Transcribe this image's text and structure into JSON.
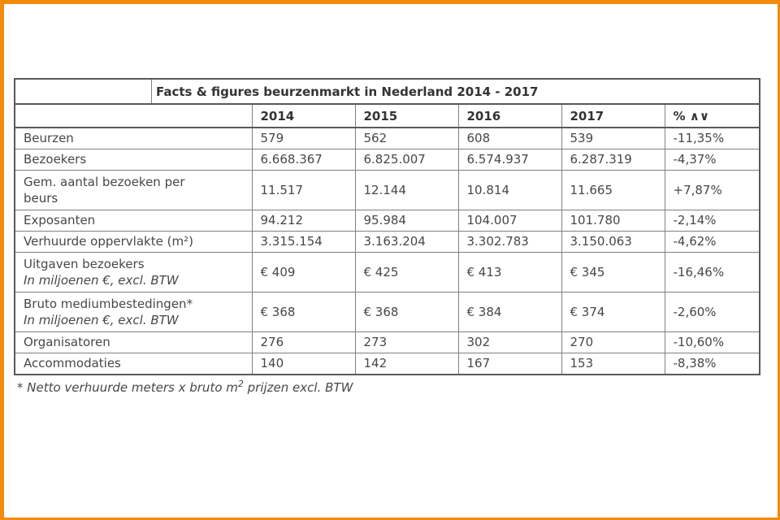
{
  "chart_data": {
    "type": "table",
    "title": "Facts & figures beurzenmarkt in Nederland 2014 - 2017",
    "columns": [
      "",
      "2014",
      "2015",
      "2016",
      "2017",
      "% ∧∨"
    ],
    "rows": [
      {
        "label": "Beurzen",
        "values": [
          "579",
          "562",
          "608",
          "539",
          "-11,35%"
        ]
      },
      {
        "label": "Bezoekers",
        "values": [
          "6.668.367",
          "6.825.007",
          "6.574.937",
          "6.287.319",
          "-4,37%"
        ]
      },
      {
        "label": "Gem. aantal bezoeken per",
        "label2": "beurs",
        "values": [
          "11.517",
          "12.144",
          "10.814",
          "11.665",
          "+7,87%"
        ]
      },
      {
        "label": "Exposanten",
        "values": [
          "94.212",
          "95.984",
          "104.007",
          "101.780",
          "-2,14%"
        ]
      },
      {
        "label": "Verhuurde oppervlakte (m²)",
        "values": [
          "3.315.154",
          "3.163.204",
          "3.302.783",
          "3.150.063",
          "-4,62%"
        ]
      },
      {
        "label": "Uitgaven bezoekers",
        "sublabel": "In miljoenen €, excl. BTW",
        "values": [
          "€ 409",
          "€ 425",
          "€ 413",
          "€ 345",
          "-16,46%"
        ]
      },
      {
        "label": "Bruto mediumbestedingen*",
        "sublabel": "In miljoenen €, excl. BTW",
        "values": [
          "€ 368",
          "€ 368",
          "€ 384",
          "€ 374",
          "-2,60%"
        ]
      },
      {
        "label": "Organisatoren",
        "values": [
          "276",
          "273",
          "302",
          "270",
          "-10,60%"
        ]
      },
      {
        "label": "Accommodaties",
        "values": [
          "140",
          "142",
          "167",
          "153",
          "-8,38%"
        ]
      }
    ],
    "footnote": {
      "prefix": "* Netto verhuurde meters x bruto m",
      "sup": "2",
      "suffix": " prijzen excl. BTW"
    }
  },
  "style": {
    "frame_color": "#F28A0C",
    "outer_border_color": "#595959",
    "grid_color": "#808080",
    "text_color": "#474747",
    "heading_color": "#333333"
  }
}
